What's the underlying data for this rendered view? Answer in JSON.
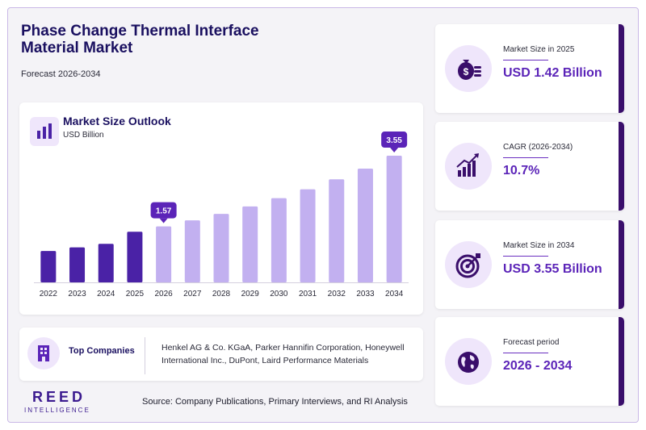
{
  "header": {
    "title": "Phase Change Thermal Interface Material Market",
    "subtitle": "Forecast 2026-2034"
  },
  "chart": {
    "title": "Market Size Outlook",
    "unit": "USD Billion"
  },
  "chart_data": {
    "type": "bar",
    "categories": [
      "2022",
      "2023",
      "2024",
      "2025",
      "2026",
      "2027",
      "2028",
      "2029",
      "2030",
      "2031",
      "2032",
      "2033",
      "2034"
    ],
    "values": [
      0.88,
      0.98,
      1.08,
      1.42,
      1.57,
      1.74,
      1.92,
      2.13,
      2.36,
      2.61,
      2.89,
      3.19,
      3.55
    ],
    "data_labels": [
      {
        "category": "2026",
        "label": "1.57"
      },
      {
        "category": "2034",
        "label": "3.55"
      }
    ],
    "historical_color": "#4a22a6",
    "forecast_color": "#c2b0f0",
    "callout_color": "#5b24b8",
    "ylim": [
      0,
      3.8
    ],
    "grid": false,
    "title": "Market Size Outlook",
    "ylabel": "USD Billion"
  },
  "kpis": [
    {
      "label": "Market Size in 2025",
      "value": "USD 1.42 Billion",
      "icon": "money-bag-icon"
    },
    {
      "label": "CAGR (2026-2034)",
      "value": "10.7%",
      "icon": "growth-chart-icon"
    },
    {
      "label": "Market Size in 2034",
      "value": "USD 3.55 Billion",
      "icon": "target-icon"
    },
    {
      "label": "Forecast period",
      "value": "2026 - 2034",
      "icon": "globe-icon"
    }
  ],
  "companies": {
    "label": "Top Companies",
    "text": "Henkel AG & Co. KGaA, Parker Hannifin Corporation, Honeywell International Inc., DuPont, Laird Performance Materials"
  },
  "footer": {
    "logo_main": "REED",
    "logo_sub": "INTELLIGENCE",
    "source": "Source: Company Publications, Primary Interviews, and RI Analysis"
  },
  "colors": {
    "accent": "#5b24b8",
    "dark": "#3a0e6b",
    "title": "#1a1060"
  }
}
